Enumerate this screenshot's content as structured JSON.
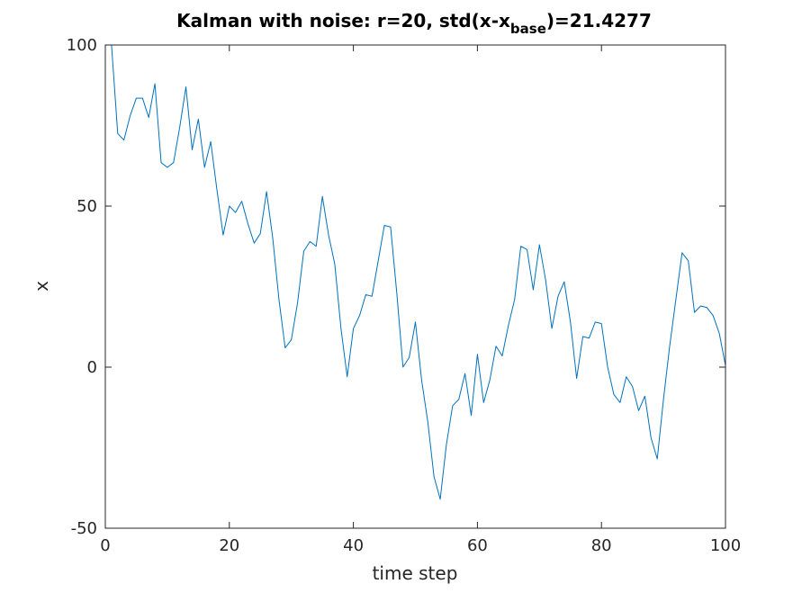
{
  "chart_data": {
    "type": "line",
    "title": {
      "prefix": "Kalman with noise: r=20, std(x-x",
      "subscript": "base",
      "suffix": ")=21.4277"
    },
    "xlabel": "time step",
    "ylabel": "x",
    "xlim": [
      0,
      100
    ],
    "ylim": [
      -50,
      100
    ],
    "xticks": [
      0,
      20,
      40,
      60,
      80,
      100
    ],
    "xtick_labels": [
      "0",
      "20",
      "40",
      "60",
      "80",
      "100"
    ],
    "yticks": [
      -50,
      0,
      50,
      100
    ],
    "ytick_labels": [
      "-50",
      "0",
      "50",
      "100"
    ],
    "grid": false,
    "box": true,
    "series": [
      {
        "color": "#0072bd",
        "x": [
          1,
          2,
          3,
          4,
          5,
          6,
          7,
          8,
          9,
          10,
          11,
          12,
          13,
          14,
          15,
          16,
          17,
          18,
          19,
          20,
          21,
          22,
          23,
          24,
          25,
          26,
          27,
          28,
          29,
          30,
          31,
          32,
          33,
          34,
          35,
          36,
          37,
          38,
          39,
          40,
          41,
          42,
          43,
          44,
          45,
          46,
          47,
          48,
          49,
          50,
          51,
          52,
          53,
          54,
          55,
          56,
          57,
          58,
          59,
          60,
          61,
          62,
          63,
          64,
          65,
          66,
          67,
          68,
          69,
          70,
          71,
          72,
          73,
          74,
          75,
          76,
          77,
          78,
          79,
          80,
          81,
          82,
          83,
          84,
          85,
          86,
          87,
          88,
          89,
          90,
          91,
          92,
          93,
          94,
          95,
          96,
          97,
          98,
          99,
          100
        ],
        "y": [
          100,
          72.5,
          70.5,
          78,
          83.5,
          83.5,
          77.5,
          88,
          63.5,
          62,
          63.5,
          74.5,
          87,
          67.5,
          77,
          62,
          70,
          55,
          41,
          50,
          48,
          51.5,
          44.5,
          38.5,
          41.5,
          54.5,
          40,
          21,
          6,
          8.5,
          20,
          36,
          39,
          37.5,
          53,
          41,
          32,
          12,
          -3,
          12,
          16,
          22.5,
          22,
          33,
          44,
          43.5,
          23,
          0,
          3,
          14,
          -4,
          -17,
          -34,
          -41,
          -24,
          -12,
          -10,
          -2,
          -15,
          4,
          -11,
          -4,
          6.5,
          3.5,
          13,
          21,
          37.5,
          36.5,
          24,
          38,
          27,
          12,
          22,
          26.5,
          14,
          -3.5,
          9.5,
          9,
          14,
          13.5,
          0,
          -8.5,
          -11,
          -3,
          -6,
          -13.5,
          -9,
          -22,
          -28.5,
          -10,
          6.5,
          21,
          35.5,
          33,
          17,
          19,
          18.5,
          16,
          10.5,
          0.5
        ]
      }
    ]
  }
}
